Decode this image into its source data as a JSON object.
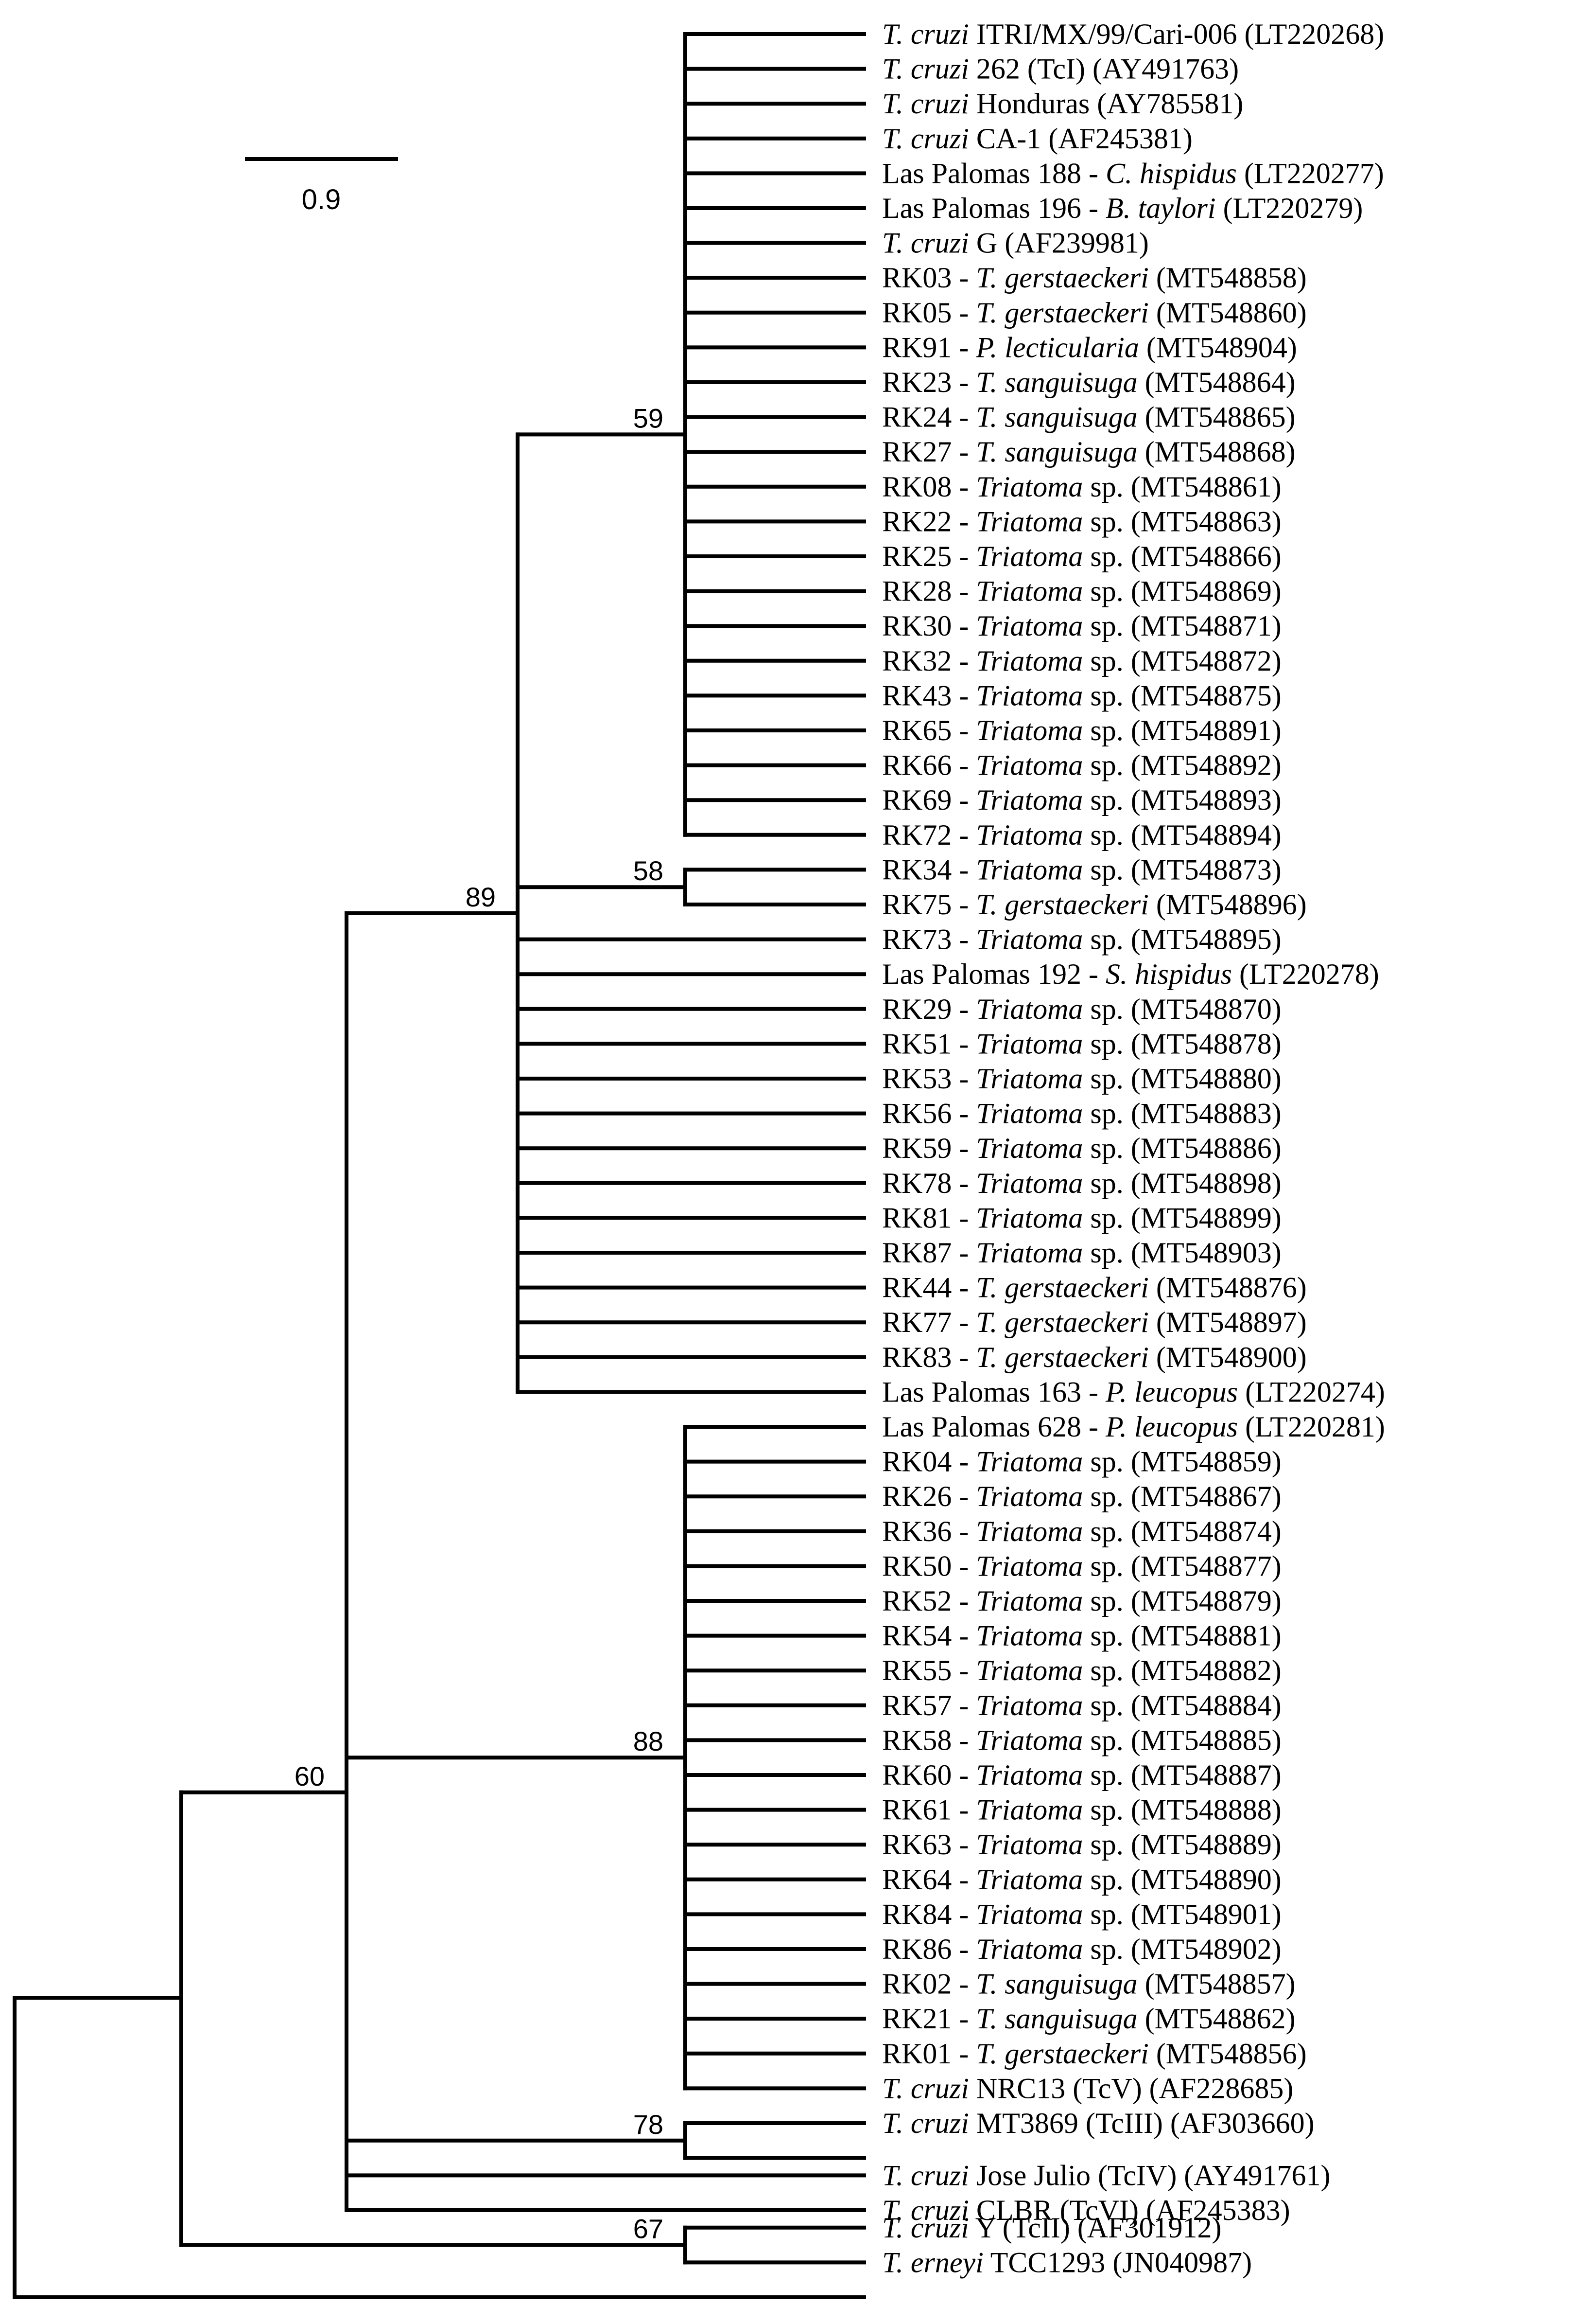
{
  "scale_bar": {
    "label": "0.9"
  },
  "leaves": [
    {
      "segments": [
        {
          "t": "T. cruzi",
          "i": true
        },
        {
          "t": " ITRI/MX/99/Cari-006 (LT220268)"
        }
      ]
    },
    {
      "segments": [
        {
          "t": "T. cruzi",
          "i": true
        },
        {
          "t": " 262 (TcI) (AY491763)"
        }
      ]
    },
    {
      "segments": [
        {
          "t": "T. cruzi",
          "i": true
        },
        {
          "t": " Honduras (AY785581)"
        }
      ]
    },
    {
      "segments": [
        {
          "t": "T. cruzi",
          "i": true
        },
        {
          "t": " CA-1 (AF245381)"
        }
      ]
    },
    {
      "segments": [
        {
          "t": "Las Palomas 188 - "
        },
        {
          "t": "C. hispidus",
          "i": true
        },
        {
          "t": " (LT220277)"
        }
      ]
    },
    {
      "segments": [
        {
          "t": "Las Palomas 196 - "
        },
        {
          "t": "B. taylori",
          "i": true
        },
        {
          "t": " (LT220279)"
        }
      ]
    },
    {
      "segments": [
        {
          "t": "T. cruzi",
          "i": true
        },
        {
          "t": " G (AF239981)"
        }
      ]
    },
    {
      "segments": [
        {
          "t": "RK03 - "
        },
        {
          "t": "T. gerstaeckeri",
          "i": true
        },
        {
          "t": " (MT548858)"
        }
      ]
    },
    {
      "segments": [
        {
          "t": "RK05 - "
        },
        {
          "t": "T. gerstaeckeri",
          "i": true
        },
        {
          "t": " (MT548860)"
        }
      ]
    },
    {
      "segments": [
        {
          "t": "RK91 - "
        },
        {
          "t": "P. lecticularia",
          "i": true
        },
        {
          "t": " (MT548904)"
        }
      ]
    },
    {
      "segments": [
        {
          "t": "RK23 - "
        },
        {
          "t": "T. sanguisuga",
          "i": true
        },
        {
          "t": " (MT548864)"
        }
      ]
    },
    {
      "segments": [
        {
          "t": "RK24 - "
        },
        {
          "t": "T. sanguisuga",
          "i": true
        },
        {
          "t": " (MT548865)"
        }
      ]
    },
    {
      "segments": [
        {
          "t": "RK27 - "
        },
        {
          "t": "T. sanguisuga",
          "i": true
        },
        {
          "t": " (MT548868)"
        }
      ]
    },
    {
      "segments": [
        {
          "t": "RK08 - "
        },
        {
          "t": "Triatoma",
          "i": true
        },
        {
          "t": " sp. (MT548861)"
        }
      ]
    },
    {
      "segments": [
        {
          "t": "RK22 - "
        },
        {
          "t": "Triatoma",
          "i": true
        },
        {
          "t": " sp. (MT548863)"
        }
      ]
    },
    {
      "segments": [
        {
          "t": "RK25 - "
        },
        {
          "t": "Triatoma",
          "i": true
        },
        {
          "t": " sp. (MT548866)"
        }
      ]
    },
    {
      "segments": [
        {
          "t": "RK28 - "
        },
        {
          "t": "Triatoma",
          "i": true
        },
        {
          "t": " sp. (MT548869)"
        }
      ]
    },
    {
      "segments": [
        {
          "t": "RK30 - "
        },
        {
          "t": "Triatoma",
          "i": true
        },
        {
          "t": " sp. (MT548871)"
        }
      ]
    },
    {
      "segments": [
        {
          "t": "RK32 - "
        },
        {
          "t": "Triatoma",
          "i": true
        },
        {
          "t": " sp. (MT548872)"
        }
      ]
    },
    {
      "segments": [
        {
          "t": "RK43 - "
        },
        {
          "t": "Triatoma",
          "i": true
        },
        {
          "t": " sp. (MT548875)"
        }
      ]
    },
    {
      "segments": [
        {
          "t": "RK65 - "
        },
        {
          "t": "Triatoma",
          "i": true
        },
        {
          "t": " sp. (MT548891)"
        }
      ]
    },
    {
      "segments": [
        {
          "t": "RK66 - "
        },
        {
          "t": "Triatoma",
          "i": true
        },
        {
          "t": " sp. (MT548892)"
        }
      ]
    },
    {
      "segments": [
        {
          "t": "RK69 - "
        },
        {
          "t": "Triatoma",
          "i": true
        },
        {
          "t": " sp. (MT548893)"
        }
      ]
    },
    {
      "segments": [
        {
          "t": "RK72 - "
        },
        {
          "t": "Triatoma",
          "i": true
        },
        {
          "t": " sp. (MT548894)"
        }
      ]
    },
    {
      "segments": [
        {
          "t": "RK34 - "
        },
        {
          "t": "Triatoma",
          "i": true
        },
        {
          "t": " sp. (MT548873)"
        }
      ]
    },
    {
      "segments": [
        {
          "t": "RK75 - "
        },
        {
          "t": "T. gerstaeckeri",
          "i": true
        },
        {
          "t": " (MT548896)"
        }
      ]
    },
    {
      "segments": [
        {
          "t": "RK73 - "
        },
        {
          "t": "Triatoma",
          "i": true
        },
        {
          "t": " sp. (MT548895)"
        }
      ]
    },
    {
      "segments": [
        {
          "t": "Las Palomas 192 - "
        },
        {
          "t": "S. hispidus",
          "i": true
        },
        {
          "t": " (LT220278)"
        }
      ]
    },
    {
      "segments": [
        {
          "t": "RK29 - "
        },
        {
          "t": "Triatoma",
          "i": true
        },
        {
          "t": " sp. (MT548870)"
        }
      ]
    },
    {
      "segments": [
        {
          "t": "RK51 - "
        },
        {
          "t": "Triatoma",
          "i": true
        },
        {
          "t": " sp. (MT548878)"
        }
      ]
    },
    {
      "segments": [
        {
          "t": "RK53 - "
        },
        {
          "t": "Triatoma",
          "i": true
        },
        {
          "t": " sp. (MT548880)"
        }
      ]
    },
    {
      "segments": [
        {
          "t": "RK56 - "
        },
        {
          "t": "Triatoma",
          "i": true
        },
        {
          "t": " sp. (MT548883)"
        }
      ]
    },
    {
      "segments": [
        {
          "t": "RK59 - "
        },
        {
          "t": "Triatoma",
          "i": true
        },
        {
          "t": " sp. (MT548886)"
        }
      ]
    },
    {
      "segments": [
        {
          "t": "RK78 - "
        },
        {
          "t": "Triatoma",
          "i": true
        },
        {
          "t": " sp. (MT548898)"
        }
      ]
    },
    {
      "segments": [
        {
          "t": "RK81 - "
        },
        {
          "t": "Triatoma",
          "i": true
        },
        {
          "t": " sp. (MT548899)"
        }
      ]
    },
    {
      "segments": [
        {
          "t": "RK87 - "
        },
        {
          "t": "Triatoma",
          "i": true
        },
        {
          "t": " sp. (MT548903)"
        }
      ]
    },
    {
      "segments": [
        {
          "t": "RK44 - "
        },
        {
          "t": "T. gerstaeckeri",
          "i": true
        },
        {
          "t": " (MT548876)"
        }
      ]
    },
    {
      "segments": [
        {
          "t": "RK77 - "
        },
        {
          "t": "T. gerstaeckeri",
          "i": true
        },
        {
          "t": " (MT548897)"
        }
      ]
    },
    {
      "segments": [
        {
          "t": "RK83 - "
        },
        {
          "t": "T. gerstaeckeri",
          "i": true
        },
        {
          "t": " (MT548900)"
        }
      ]
    },
    {
      "segments": [
        {
          "t": "Las Palomas 163 - "
        },
        {
          "t": "P. leucopus",
          "i": true
        },
        {
          "t": " (LT220274)"
        }
      ]
    },
    {
      "segments": [
        {
          "t": "Las Palomas 628 - "
        },
        {
          "t": "P. leucopus",
          "i": true
        },
        {
          "t": " (LT220281)"
        }
      ]
    },
    {
      "segments": [
        {
          "t": "RK04 - "
        },
        {
          "t": "Triatoma",
          "i": true
        },
        {
          "t": " sp. (MT548859)"
        }
      ]
    },
    {
      "segments": [
        {
          "t": "RK26 - "
        },
        {
          "t": "Triatoma",
          "i": true
        },
        {
          "t": " sp. (MT548867)"
        }
      ]
    },
    {
      "segments": [
        {
          "t": "RK36 - "
        },
        {
          "t": "Triatoma",
          "i": true
        },
        {
          "t": " sp. (MT548874)"
        }
      ]
    },
    {
      "segments": [
        {
          "t": "RK50 - "
        },
        {
          "t": "Triatoma",
          "i": true
        },
        {
          "t": " sp. (MT548877)"
        }
      ]
    },
    {
      "segments": [
        {
          "t": "RK52 - "
        },
        {
          "t": "Triatoma",
          "i": true
        },
        {
          "t": " sp. (MT548879)"
        }
      ]
    },
    {
      "segments": [
        {
          "t": "RK54 - "
        },
        {
          "t": "Triatoma",
          "i": true
        },
        {
          "t": " sp. (MT548881)"
        }
      ]
    },
    {
      "segments": [
        {
          "t": "RK55 - "
        },
        {
          "t": "Triatoma",
          "i": true
        },
        {
          "t": " sp. (MT548882)"
        }
      ]
    },
    {
      "segments": [
        {
          "t": "RK57 - "
        },
        {
          "t": "Triatoma",
          "i": true
        },
        {
          "t": " sp. (MT548884)"
        }
      ]
    },
    {
      "segments": [
        {
          "t": "RK58 - "
        },
        {
          "t": "Triatoma",
          "i": true
        },
        {
          "t": " sp. (MT548885)"
        }
      ]
    },
    {
      "segments": [
        {
          "t": "RK60 - "
        },
        {
          "t": "Triatoma",
          "i": true
        },
        {
          "t": " sp. (MT548887)"
        }
      ]
    },
    {
      "segments": [
        {
          "t": "RK61 - "
        },
        {
          "t": "Triatoma",
          "i": true
        },
        {
          "t": " sp. (MT548888)"
        }
      ]
    },
    {
      "segments": [
        {
          "t": "RK63 - "
        },
        {
          "t": "Triatoma",
          "i": true
        },
        {
          "t": " sp. (MT548889)"
        }
      ]
    },
    {
      "segments": [
        {
          "t": "RK64 - "
        },
        {
          "t": "Triatoma",
          "i": true
        },
        {
          "t": " sp. (MT548890)"
        }
      ]
    },
    {
      "segments": [
        {
          "t": "RK84 - "
        },
        {
          "t": "Triatoma",
          "i": true
        },
        {
          "t": " sp. (MT548901)"
        }
      ]
    },
    {
      "segments": [
        {
          "t": "RK86 - "
        },
        {
          "t": "Triatoma",
          "i": true
        },
        {
          "t": " sp. (MT548902)"
        }
      ]
    },
    {
      "segments": [
        {
          "t": "RK02 - "
        },
        {
          "t": "T. sanguisuga",
          "i": true
        },
        {
          "t": " (MT548857)"
        }
      ]
    },
    {
      "segments": [
        {
          "t": "RK21 - "
        },
        {
          "t": "T. sanguisuga",
          "i": true
        },
        {
          "t": " (MT548862)"
        }
      ]
    },
    {
      "segments": [
        {
          "t": "RK01 - "
        },
        {
          "t": "T. gerstaeckeri",
          "i": true
        },
        {
          "t": " (MT548856)"
        }
      ]
    },
    {
      "segments": [
        {
          "t": "T. cruzi",
          "i": true
        },
        {
          "t": " NRC13 (TcV) (AF228685)"
        }
      ]
    },
    {
      "segments": [
        {
          "t": "T. cruzi",
          "i": true
        },
        {
          "t": " MT3869 (TcIII) (AF303660)"
        }
      ]
    },
    {
      "segments": [
        {
          "t": "T. cruzi",
          "i": true
        },
        {
          "t": " Jose Julio (TcIV) (AY491761)"
        }
      ]
    },
    {
      "segments": [
        {
          "t": "T. cruzi",
          "i": true
        },
        {
          "t": " CLBR (TcVI) (AF245383)"
        }
      ]
    },
    {
      "segments": [
        {
          "t": "T. cruzi",
          "i": true
        },
        {
          "t": " Y (TcII) (AF301912)"
        }
      ]
    },
    {
      "segments": [
        {
          "t": "T. erneyi",
          "i": true
        },
        {
          "t": " TCC1293 (JN040987)"
        }
      ]
    }
  ],
  "clades": [
    {
      "id": "c59",
      "support": "59"
    },
    {
      "id": "c58",
      "support": "58"
    },
    {
      "id": "c89",
      "support": "89"
    },
    {
      "id": "c88",
      "support": "88"
    },
    {
      "id": "c78",
      "support": "78"
    },
    {
      "id": "c60",
      "support": "60"
    },
    {
      "id": "c67",
      "support": "67"
    }
  ]
}
